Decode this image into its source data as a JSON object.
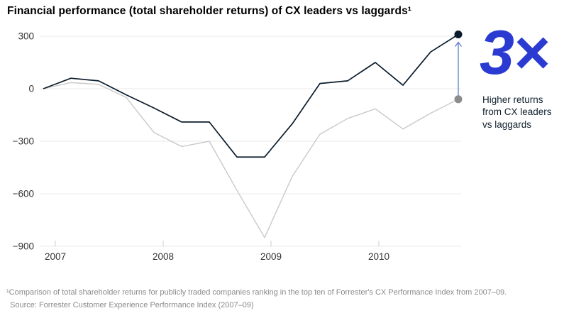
{
  "title": "Financial performance (total shareholder returns) of CX leaders vs laggards¹",
  "annotation": {
    "multiplier": "3×",
    "caption": "Higher returns from CX leaders vs laggards",
    "color": "#2b3bd2",
    "arrow_color": "#5d79cc"
  },
  "footnotes": {
    "line1": "¹Comparison of total shareholder returns for publicly traded companies ranking in the top ten of Forrester's CX Performance Index from 2007–09.",
    "line2": "Source: Forrester Customer Experience Performance Index (2007–09)"
  },
  "chart_data": {
    "type": "line",
    "title": "Financial performance (total shareholder returns) of CX leaders vs laggards",
    "x": [
      2007.0,
      2007.25,
      2007.5,
      2007.75,
      2008.0,
      2008.25,
      2008.5,
      2008.75,
      2009.0,
      2009.25,
      2009.5,
      2009.75,
      2010.0,
      2010.25,
      2010.5,
      2010.75
    ],
    "series": [
      {
        "name": "CX leaders",
        "color": "#0a1c2c",
        "dot_color": "#0a1c2c",
        "values": [
          0,
          60,
          45,
          -35,
          -110,
          -190,
          -190,
          -390,
          -390,
          -200,
          30,
          45,
          150,
          20,
          210,
          310
        ]
      },
      {
        "name": "CX laggards",
        "color": "#c9c9c9",
        "dot_color": "#8c8c8c",
        "values": [
          0,
          35,
          25,
          -50,
          -250,
          -330,
          -300,
          -580,
          -850,
          -500,
          -260,
          -170,
          -115,
          -230,
          -140,
          -60
        ]
      }
    ],
    "yticks": [
      300,
      0,
      -300,
      -600,
      -900
    ],
    "ytick_labels": [
      "300",
      "0",
      "−300",
      "−600",
      "−900"
    ],
    "xticks": [
      2007,
      2008,
      2009,
      2010
    ],
    "xtick_labels": [
      "2007",
      "2008",
      "2009",
      "2010"
    ],
    "ylim": [
      -950,
      360
    ],
    "grid": "horizontal",
    "grid_color": "#e8e8e8",
    "tick_color": "#cccccc",
    "axis_label_color": "#333333",
    "legend": "none"
  }
}
